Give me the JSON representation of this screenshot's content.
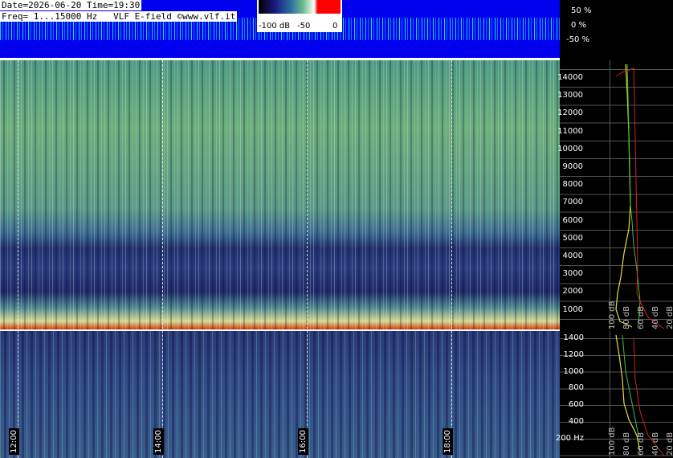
{
  "header": {
    "line1": "Date=2026-06-20 Time=19:30",
    "line2": "Freq= 1...15000 Hz   VLF E-field ©www.vlf.it"
  },
  "colorbar": {
    "labels": [
      "-100 dB",
      "-50",
      "0"
    ]
  },
  "amplitude_axis": {
    "labels": [
      "50 %",
      "0 %",
      "-50 %"
    ]
  },
  "upper_freq_labels": [
    "14000",
    "13000",
    "12000",
    "11000",
    "10000",
    "9000",
    "8000",
    "7000",
    "6000",
    "5000",
    "4000",
    "3000",
    "2000",
    "1000"
  ],
  "lower_freq_labels": [
    "1400",
    "1200",
    "1000",
    "800",
    "600",
    "400",
    "200 Hz"
  ],
  "time_labels": [
    "12:00",
    "14:00",
    "16:00",
    "18:00"
  ],
  "upper_db_labels": [
    "100 dB",
    "80 dB",
    "60 dB",
    "40 dB",
    "20 dB"
  ],
  "lower_db_labels": [
    "100 dB",
    "80 dB",
    "60 dB",
    "40 dB",
    "20 dB"
  ]
}
